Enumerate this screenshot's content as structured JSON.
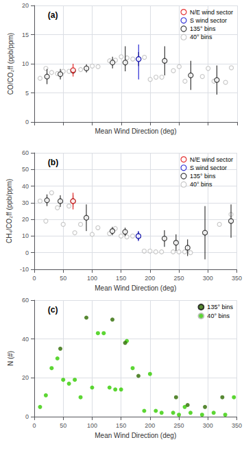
{
  "chart_data": [
    {
      "type": "scatter",
      "title": "(a)",
      "xlabel": "Mean Wind Direction (deg)",
      "ylabel": "CO/CO₂ff (ppb/ppm)",
      "xlim": [
        0,
        350
      ],
      "xticks": [
        0,
        50,
        100,
        150,
        200,
        250,
        300,
        350
      ],
      "ylim": [
        0,
        20
      ],
      "yticks": [
        0,
        5,
        10,
        15,
        20
      ],
      "grid": true,
      "legend": "upper right",
      "tick_labels": "y",
      "series": [
        {
          "name": "N/E wind sector",
          "color": "#dd0000",
          "marker": "open_circle",
          "x": [
            67
          ],
          "values": [
            8.9
          ],
          "yerr_lo": [
            1.1
          ],
          "yerr_hi": [
            1.1
          ]
        },
        {
          "name": "S wind sector",
          "color": "#0000cc",
          "marker": "open_circle",
          "x": [
            180
          ],
          "values": [
            10.8
          ],
          "yerr_lo": [
            3.5
          ],
          "yerr_hi": [
            2.5
          ]
        },
        {
          "name": "135° bins",
          "color": "#111111",
          "marker": "open_circle",
          "x": [
            22,
            45,
            67,
            90,
            135,
            157,
            180,
            225,
            270,
            315
          ],
          "values": [
            7.8,
            8.2,
            8.8,
            9.2,
            10.2,
            10.2,
            10.8,
            10.5,
            8.0,
            7.2
          ],
          "yerr_lo": [
            1.3,
            0.9,
            0.5,
            0.7,
            1.0,
            1.5,
            1.2,
            2.5,
            2.5,
            2.5
          ],
          "yerr_hi": [
            1.3,
            0.9,
            0.5,
            0.7,
            1.0,
            2.8,
            1.2,
            2.5,
            2.5,
            2.5
          ]
        },
        {
          "name": "40° bins",
          "color": "#bbbbbb",
          "marker": "open_circle",
          "x": [
            10,
            20,
            30,
            40,
            50,
            60,
            80,
            100,
            110,
            130,
            140,
            150,
            160,
            170,
            190,
            200,
            210,
            220,
            240,
            250,
            260,
            290,
            300,
            310,
            330,
            340
          ],
          "values": [
            7.5,
            9.2,
            8.5,
            8.3,
            8.7,
            8.7,
            9.0,
            9.6,
            9.5,
            10.5,
            10.6,
            11.2,
            11.0,
            10.8,
            11.1,
            7.3,
            7.7,
            7.7,
            8.8,
            9.5,
            7.0,
            7.8,
            9.2,
            7.0,
            6.8,
            9.3
          ]
        }
      ]
    },
    {
      "type": "scatter",
      "title": "(b)",
      "xlabel": "Mean Wind Direction (deg)",
      "ylabel": "CH₄/CO₂ff (ppb/ppm)",
      "xlim": [
        0,
        350
      ],
      "xticks": [
        0,
        50,
        100,
        150,
        200,
        250,
        300,
        350
      ],
      "ylim": [
        -10,
        60
      ],
      "yticks": [
        -10,
        0,
        10,
        20,
        30,
        40,
        50,
        60
      ],
      "grid": true,
      "legend": "upper right",
      "series": [
        {
          "name": "N/E wind sector",
          "color": "#dd0000",
          "marker": "open_circle",
          "x": [
            67
          ],
          "values": [
            31.0
          ],
          "yerr_lo": [
            5.0
          ],
          "yerr_hi": [
            5.0
          ]
        },
        {
          "name": "S wind sector",
          "color": "#0000cc",
          "marker": "open_circle",
          "x": [
            180
          ],
          "values": [
            10.0
          ],
          "yerr_lo": [
            3.0
          ],
          "yerr_hi": [
            3.0
          ]
        },
        {
          "name": "135° bins",
          "color": "#111111",
          "marker": "open_circle",
          "x": [
            22,
            45,
            67,
            90,
            135,
            157,
            180,
            225,
            245,
            265,
            295,
            340
          ],
          "values": [
            31.5,
            31.0,
            31.0,
            21.0,
            13.0,
            12.5,
            10.0,
            8.5,
            6.0,
            3.0,
            12.0,
            19.0
          ],
          "yerr_lo": [
            3.5,
            3.5,
            3.5,
            8.0,
            2.5,
            2.5,
            2.5,
            5.0,
            5.0,
            5.0,
            16.0,
            10.0
          ],
          "yerr_hi": [
            3.5,
            3.5,
            3.5,
            8.0,
            2.5,
            2.5,
            2.5,
            5.0,
            5.0,
            5.0,
            16.0,
            10.0
          ]
        },
        {
          "name": "40° bins",
          "color": "#bbbbbb",
          "marker": "open_circle",
          "x": [
            10,
            20,
            30,
            40,
            50,
            60,
            70,
            80,
            100,
            110,
            130,
            140,
            150,
            160,
            170,
            190,
            200,
            210,
            220,
            240,
            250,
            260,
            270,
            320,
            340
          ],
          "values": [
            31.0,
            19.0,
            36.0,
            27.0,
            17.0,
            28.0,
            12.0,
            17.0,
            11.0,
            15.0,
            11.5,
            14.5,
            10.0,
            9.5,
            10.0,
            1.0,
            1.0,
            0.5,
            0.5,
            0.5,
            0.5,
            0.5,
            0.0,
            17.0,
            23.0
          ]
        }
      ]
    },
    {
      "type": "scatter",
      "title": "(c)",
      "xlabel": "Mean Wind Direction (deg)",
      "ylabel": "N (#)",
      "xlim": [
        0,
        350
      ],
      "xticks": [
        0,
        50,
        100,
        150,
        200,
        250,
        300,
        350
      ],
      "ylim": [
        0,
        60
      ],
      "yticks": [
        0,
        20,
        40,
        60
      ],
      "grid": true,
      "legend": "upper right",
      "series": [
        {
          "name": "135° bins",
          "color": "#2d6a00",
          "marker": "circle",
          "x": [
            45,
            90,
            135,
            157,
            180,
            245,
            265,
            295,
            325
          ],
          "values": [
            35,
            51,
            50,
            38,
            21,
            10,
            6,
            5,
            10
          ]
        },
        {
          "name": "40° bins",
          "color": "#33cc00",
          "marker": "circle",
          "x": [
            10,
            20,
            30,
            40,
            50,
            60,
            70,
            80,
            100,
            110,
            120,
            130,
            140,
            150,
            160,
            170,
            190,
            200,
            210,
            220,
            240,
            250,
            260,
            270,
            290,
            310,
            330,
            345
          ],
          "values": [
            5,
            11,
            25,
            30,
            19,
            17,
            19,
            10,
            15,
            43,
            43,
            15,
            14,
            14,
            39,
            25,
            3,
            22,
            3,
            2,
            2,
            1,
            5,
            2,
            1,
            2,
            1,
            10
          ]
        }
      ]
    }
  ]
}
